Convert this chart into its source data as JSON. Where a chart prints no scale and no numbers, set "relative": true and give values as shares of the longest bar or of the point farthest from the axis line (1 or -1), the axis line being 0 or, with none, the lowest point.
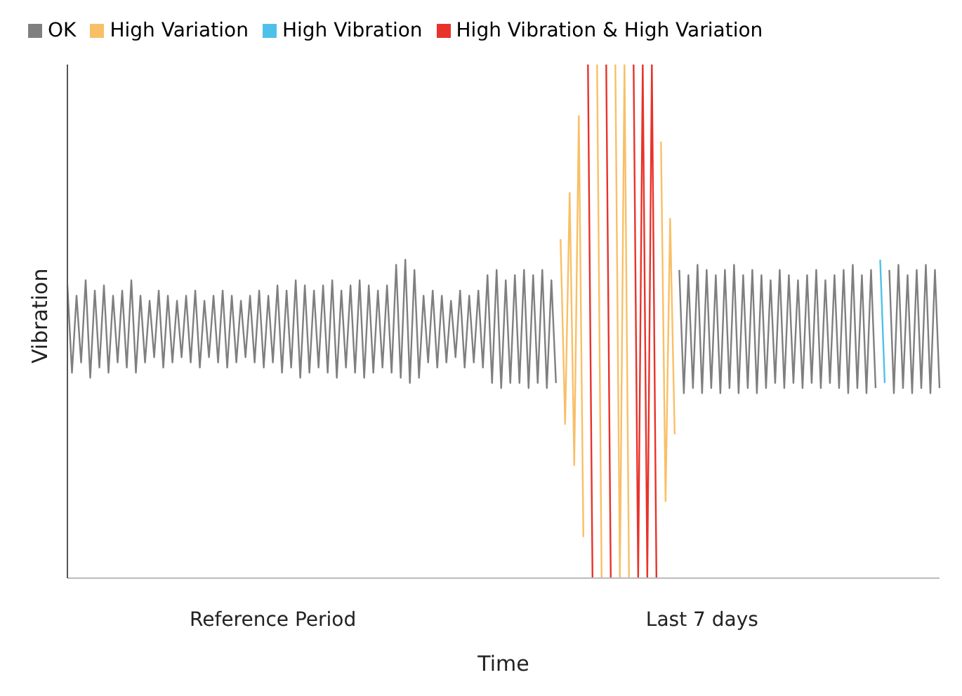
{
  "chart_data": {
    "type": "line",
    "relative": true,
    "xlabel": "Time",
    "ylabel": "Vibration",
    "legend": "top left",
    "categories": [
      null,
      null,
      null,
      null,
      null,
      null,
      null,
      null,
      null,
      null,
      null,
      null,
      null,
      null,
      null,
      null,
      null,
      null,
      null,
      null,
      null,
      null,
      null,
      null,
      null,
      null,
      null,
      null,
      null,
      null,
      null,
      null,
      null,
      null,
      null,
      null,
      null,
      null,
      null,
      null,
      null,
      null,
      null,
      null,
      null,
      "Reference Period",
      null,
      null,
      null,
      null,
      null,
      null,
      null,
      null,
      null,
      null,
      null,
      null,
      null,
      null,
      null,
      null,
      null,
      null,
      null,
      null,
      null,
      null,
      null,
      null,
      null,
      null,
      null,
      null,
      null,
      null,
      null,
      null,
      null,
      null,
      null,
      null,
      null,
      null,
      null,
      null,
      null,
      null,
      null,
      null,
      null,
      null,
      null,
      null,
      null,
      null,
      null,
      null,
      null,
      null,
      null,
      null,
      null,
      null,
      null,
      null,
      null,
      null,
      null,
      null,
      null,
      null,
      null,
      null,
      null,
      null,
      null,
      null,
      null,
      null,
      null,
      null,
      null,
      null,
      null,
      null,
      null,
      null,
      null,
      null,
      null,
      null,
      null,
      null,
      null,
      null,
      null,
      null,
      null,
      "Last 7 days",
      null,
      null,
      null,
      null,
      null,
      null,
      null,
      null,
      null,
      null,
      null,
      null,
      null,
      null,
      null,
      null,
      null,
      null,
      null,
      null,
      null,
      null,
      null,
      null,
      null,
      null,
      null,
      null,
      null,
      null,
      null,
      null,
      null,
      null,
      null,
      null,
      null,
      null,
      null,
      null,
      null,
      null,
      null,
      null,
      null,
      null,
      null,
      null,
      null,
      null,
      null,
      null
    ],
    "series": [
      {
        "name": "OK",
        "color": "#7f7f7f",
        "values": [
          0.57,
          0.4,
          0.55,
          0.42,
          0.58,
          0.39,
          0.56,
          0.41,
          0.57,
          0.4,
          0.55,
          0.42,
          0.56,
          0.41,
          0.58,
          0.4,
          0.55,
          0.42,
          0.54,
          0.43,
          0.56,
          0.41,
          0.55,
          0.42,
          0.54,
          0.43,
          0.55,
          0.42,
          0.56,
          0.41,
          0.54,
          0.43,
          0.55,
          0.42,
          0.56,
          0.41,
          0.55,
          0.42,
          0.54,
          0.43,
          0.55,
          0.42,
          0.56,
          0.41,
          0.55,
          0.42,
          0.57,
          0.4,
          0.56,
          0.41,
          0.58,
          0.39,
          0.57,
          0.4,
          0.56,
          0.41,
          0.57,
          0.4,
          0.58,
          0.39,
          0.56,
          0.41,
          0.57,
          0.4,
          0.58,
          0.39,
          0.57,
          0.4,
          0.56,
          0.41,
          0.57,
          0.4,
          0.61,
          0.39,
          0.62,
          0.38,
          0.6,
          0.39,
          0.55,
          0.42,
          0.56,
          0.41,
          0.55,
          0.42,
          0.54,
          0.43,
          0.56,
          0.41,
          0.55,
          0.42,
          0.56,
          0.41,
          0.59,
          0.38,
          0.6,
          0.37,
          0.58,
          0.38,
          0.59,
          0.38,
          0.6,
          0.37,
          0.59,
          0.38,
          0.6,
          0.37,
          0.58,
          0.38,
          null,
          null,
          null,
          null,
          null,
          null,
          null,
          null,
          null,
          null,
          null,
          null,
          null,
          null,
          null,
          null,
          null,
          null,
          null,
          null,
          null,
          null,
          null,
          null,
          null,
          null,
          0.6,
          0.36,
          0.59,
          0.37,
          0.61,
          0.36,
          0.6,
          0.37,
          0.59,
          0.36,
          0.6,
          0.37,
          0.61,
          0.36,
          0.59,
          0.37,
          0.6,
          0.36,
          0.59,
          0.37,
          0.58,
          0.38,
          0.6,
          0.37,
          0.59,
          0.38,
          0.58,
          0.37,
          0.59,
          0.38,
          0.6,
          0.37,
          0.58,
          0.38,
          0.59,
          0.37,
          0.6,
          0.36,
          0.61,
          0.37,
          0.59,
          0.36,
          0.6,
          0.37,
          null,
          null,
          0.6,
          0.36,
          0.61,
          0.37,
          0.59,
          0.36,
          0.6,
          0.37,
          0.61,
          0.36,
          0.6,
          0.37
        ]
      },
      {
        "name": "High Variation",
        "color": "#f9bf66",
        "values": [
          null,
          null,
          null,
          null,
          null,
          null,
          null,
          null,
          null,
          null,
          null,
          null,
          null,
          null,
          null,
          null,
          null,
          null,
          null,
          null,
          null,
          null,
          null,
          null,
          null,
          null,
          null,
          null,
          null,
          null,
          null,
          null,
          null,
          null,
          null,
          null,
          null,
          null,
          null,
          null,
          null,
          null,
          null,
          null,
          null,
          null,
          null,
          null,
          null,
          null,
          null,
          null,
          null,
          null,
          null,
          null,
          null,
          null,
          null,
          null,
          null,
          null,
          null,
          null,
          null,
          null,
          null,
          null,
          null,
          null,
          null,
          null,
          null,
          null,
          null,
          null,
          null,
          null,
          null,
          null,
          null,
          null,
          null,
          null,
          null,
          null,
          null,
          null,
          null,
          null,
          null,
          null,
          null,
          null,
          null,
          null,
          null,
          null,
          null,
          null,
          null,
          null,
          null,
          null,
          null,
          null,
          null,
          null,
          0.66,
          0.3,
          0.75,
          0.22,
          0.9,
          0.08,
          null,
          null,
          1,
          0,
          null,
          null,
          1,
          0,
          1,
          0,
          null,
          null,
          null,
          null,
          null,
          null,
          0.85,
          0.15,
          0.7,
          0.28,
          null,
          null,
          null,
          null,
          null,
          null,
          null,
          null,
          null,
          null,
          null,
          null,
          null,
          null,
          null,
          null,
          null,
          null,
          null,
          null,
          null,
          null,
          null,
          null,
          null,
          null,
          null,
          null,
          null,
          null,
          null,
          null,
          null,
          null,
          null,
          null,
          null,
          null,
          null,
          null,
          null,
          null,
          null,
          null,
          null,
          null,
          null,
          null,
          null,
          null,
          null,
          null,
          null,
          null,
          null,
          null,
          null,
          null
        ]
      },
      {
        "name": "High Vibration",
        "color": "#4fc1e9",
        "values": [
          null,
          null,
          null,
          null,
          null,
          null,
          null,
          null,
          null,
          null,
          null,
          null,
          null,
          null,
          null,
          null,
          null,
          null,
          null,
          null,
          null,
          null,
          null,
          null,
          null,
          null,
          null,
          null,
          null,
          null,
          null,
          null,
          null,
          null,
          null,
          null,
          null,
          null,
          null,
          null,
          null,
          null,
          null,
          null,
          null,
          null,
          null,
          null,
          null,
          null,
          null,
          null,
          null,
          null,
          null,
          null,
          null,
          null,
          null,
          null,
          null,
          null,
          null,
          null,
          null,
          null,
          null,
          null,
          null,
          null,
          null,
          null,
          null,
          null,
          null,
          null,
          null,
          null,
          null,
          null,
          null,
          null,
          null,
          null,
          null,
          null,
          null,
          null,
          null,
          null,
          null,
          null,
          null,
          null,
          null,
          null,
          null,
          null,
          null,
          null,
          null,
          null,
          null,
          null,
          null,
          null,
          null,
          null,
          null,
          null,
          null,
          null,
          null,
          null,
          null,
          null,
          null,
          null,
          null,
          null,
          null,
          null,
          null,
          null,
          null,
          null,
          null,
          null,
          null,
          null,
          null,
          null,
          null,
          null,
          null,
          null,
          null,
          null,
          null,
          null,
          null,
          null,
          null,
          null,
          null,
          null,
          null,
          null,
          null,
          null,
          null,
          null,
          null,
          null,
          null,
          null,
          null,
          null,
          null,
          null,
          null,
          null,
          null,
          null,
          null,
          null,
          null,
          null,
          null,
          null,
          null,
          null,
          null,
          null,
          null,
          null,
          null,
          null,
          0.62,
          0.38,
          null,
          null,
          null,
          null,
          null,
          null,
          null,
          null,
          null,
          null,
          null,
          null
        ]
      },
      {
        "name": "High Vibration & High Variation",
        "color": "#e8332a",
        "values": [
          null,
          null,
          null,
          null,
          null,
          null,
          null,
          null,
          null,
          null,
          null,
          null,
          null,
          null,
          null,
          null,
          null,
          null,
          null,
          null,
          null,
          null,
          null,
          null,
          null,
          null,
          null,
          null,
          null,
          null,
          null,
          null,
          null,
          null,
          null,
          null,
          null,
          null,
          null,
          null,
          null,
          null,
          null,
          null,
          null,
          null,
          null,
          null,
          null,
          null,
          null,
          null,
          null,
          null,
          null,
          null,
          null,
          null,
          null,
          null,
          null,
          null,
          null,
          null,
          null,
          null,
          null,
          null,
          null,
          null,
          null,
          null,
          null,
          null,
          null,
          null,
          null,
          null,
          null,
          null,
          null,
          null,
          null,
          null,
          null,
          null,
          null,
          null,
          null,
          null,
          null,
          null,
          null,
          null,
          null,
          null,
          null,
          null,
          null,
          null,
          null,
          null,
          null,
          null,
          null,
          null,
          null,
          null,
          null,
          null,
          null,
          null,
          null,
          null,
          1,
          0,
          null,
          null,
          1,
          0,
          null,
          null,
          null,
          null,
          1,
          0,
          1,
          0,
          1,
          0,
          null,
          null,
          null,
          null,
          null,
          null,
          null,
          null,
          null,
          null,
          null,
          null,
          null,
          null,
          null,
          null,
          null,
          null,
          null,
          null,
          null,
          null,
          null,
          null,
          null,
          null,
          null,
          null,
          null,
          null,
          null,
          null,
          null,
          null,
          null,
          null,
          null,
          null,
          null,
          null,
          null,
          null,
          null,
          null,
          null,
          null,
          null,
          null,
          null,
          null,
          null,
          null,
          null,
          null,
          null,
          null,
          null,
          null,
          null,
          null,
          null,
          null
        ]
      }
    ]
  }
}
